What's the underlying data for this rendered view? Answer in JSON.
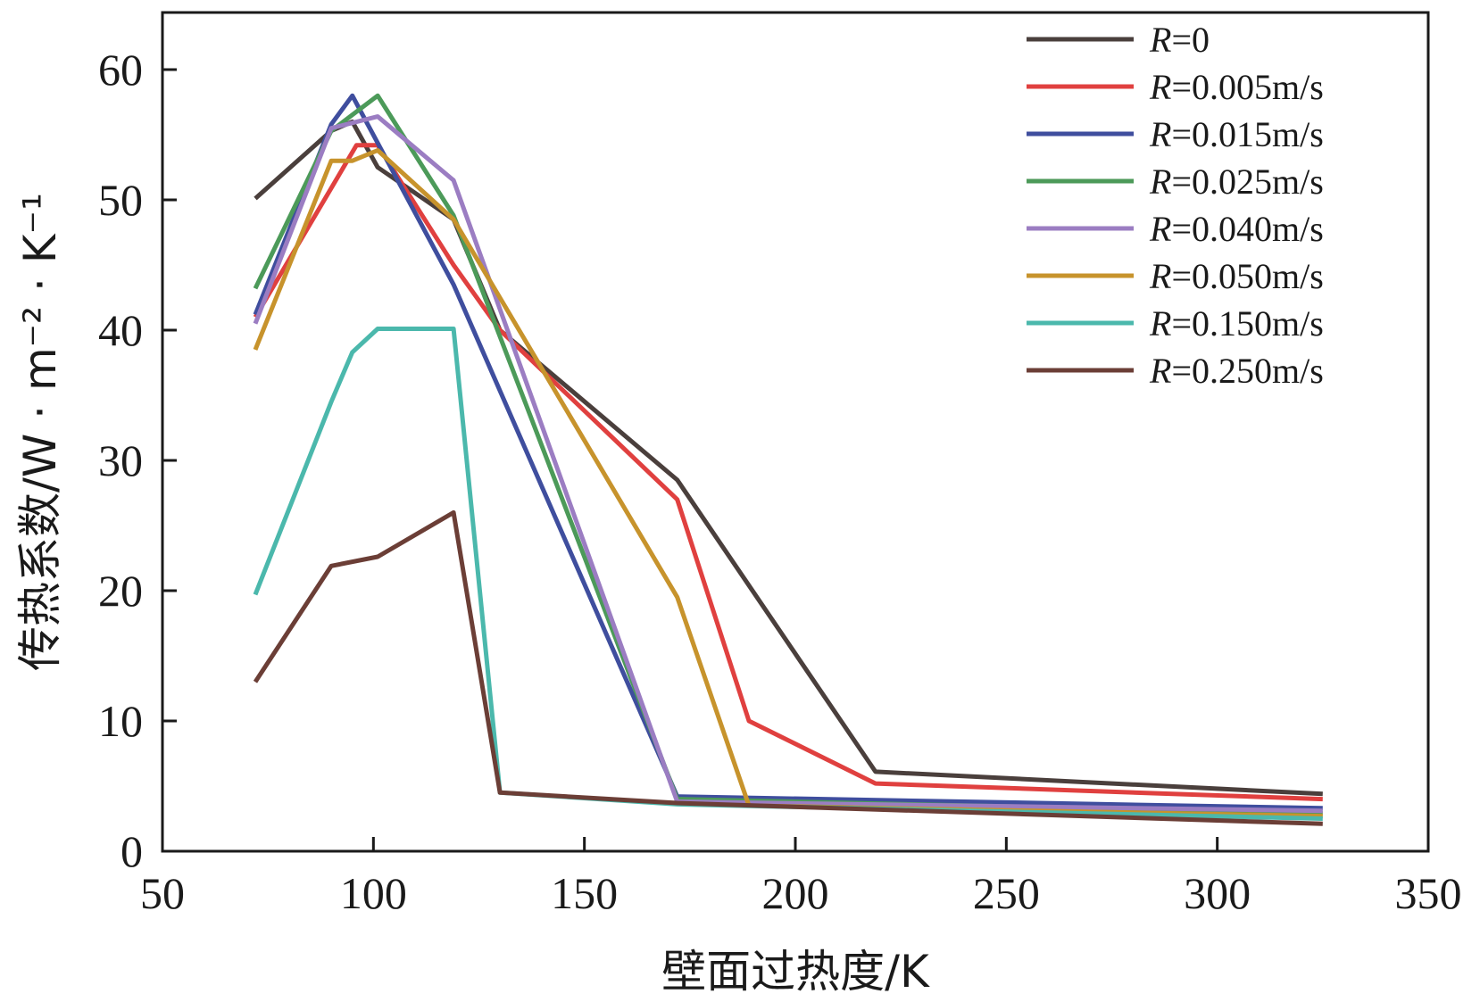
{
  "chart_data": {
    "type": "line",
    "title": "",
    "xlabel": "壁面过热度/K",
    "ylabel": "传热系数/W · m⁻² · K⁻¹",
    "xlim": [
      50,
      350
    ],
    "ylim": [
      0,
      65
    ],
    "xticks": [
      "50",
      "100",
      "150",
      "200",
      "250",
      "300",
      "350"
    ],
    "yticks": [
      "0",
      "10",
      "20",
      "30",
      "40",
      "50",
      "60"
    ],
    "legend_position": "top-right",
    "grid": false,
    "series": [
      {
        "name": "R=0",
        "name_italic": "R",
        "name_rest": "=0",
        "color": "#4a3f3c",
        "x": [
          72,
          90,
          95,
          101,
          119,
          130,
          172,
          219,
          325
        ],
        "y": [
          50.1,
          55.3,
          56.0,
          52.5,
          48.5,
          40.0,
          28.5,
          6.1,
          4.4
        ]
      },
      {
        "name": "R=0.005m/s",
        "name_italic": "R",
        "name_rest": "=0.005m/s",
        "color": "#e0403f",
        "x": [
          72,
          96,
          101,
          119,
          130,
          172,
          189,
          219,
          325
        ],
        "y": [
          41.0,
          54.2,
          54.2,
          45.0,
          40.0,
          27.0,
          10.0,
          5.2,
          4.0
        ]
      },
      {
        "name": "R=0.015m/s",
        "name_italic": "R",
        "name_rest": "=0.015m/s",
        "color": "#3f4e9e",
        "x": [
          72,
          90,
          95,
          119,
          172,
          325
        ],
        "y": [
          41.2,
          55.8,
          58.0,
          43.5,
          4.2,
          3.3
        ]
      },
      {
        "name": "R=0.025m/s",
        "name_italic": "R",
        "name_rest": "=0.025m/s",
        "color": "#4c9a59",
        "x": [
          72,
          90,
          101,
          119,
          172,
          325
        ],
        "y": [
          43.2,
          55.3,
          58.0,
          48.8,
          4.0,
          2.9
        ]
      },
      {
        "name": "R=0.040m/s",
        "name_italic": "R",
        "name_rest": "=0.040m/s",
        "color": "#9b7dc2",
        "x": [
          72,
          90,
          101,
          119,
          172,
          325
        ],
        "y": [
          40.5,
          55.5,
          56.4,
          51.5,
          3.8,
          3.1
        ]
      },
      {
        "name": "R=0.050m/s",
        "name_italic": "R",
        "name_rest": "=0.050m/s",
        "color": "#c7932c",
        "x": [
          72,
          90,
          95,
          101,
          119,
          172,
          189,
          325
        ],
        "y": [
          38.5,
          53.0,
          53.0,
          53.8,
          48.5,
          19.5,
          3.5,
          2.7
        ]
      },
      {
        "name": "R=0.150m/s",
        "name_italic": "R",
        "name_rest": "=0.150m/s",
        "color": "#4bb8ac",
        "x": [
          72,
          90,
          95,
          101,
          119,
          130,
          172,
          325
        ],
        "y": [
          19.7,
          34.5,
          38.3,
          40.1,
          40.1,
          4.5,
          3.6,
          2.5
        ]
      },
      {
        "name": "R=0.250m/s",
        "name_italic": "R",
        "name_rest": "=0.250m/s",
        "color": "#6b3e36",
        "x": [
          72,
          90,
          101,
          119,
          130,
          172,
          325
        ],
        "y": [
          13.0,
          21.9,
          22.6,
          26.0,
          4.5,
          3.7,
          2.1
        ]
      }
    ]
  }
}
